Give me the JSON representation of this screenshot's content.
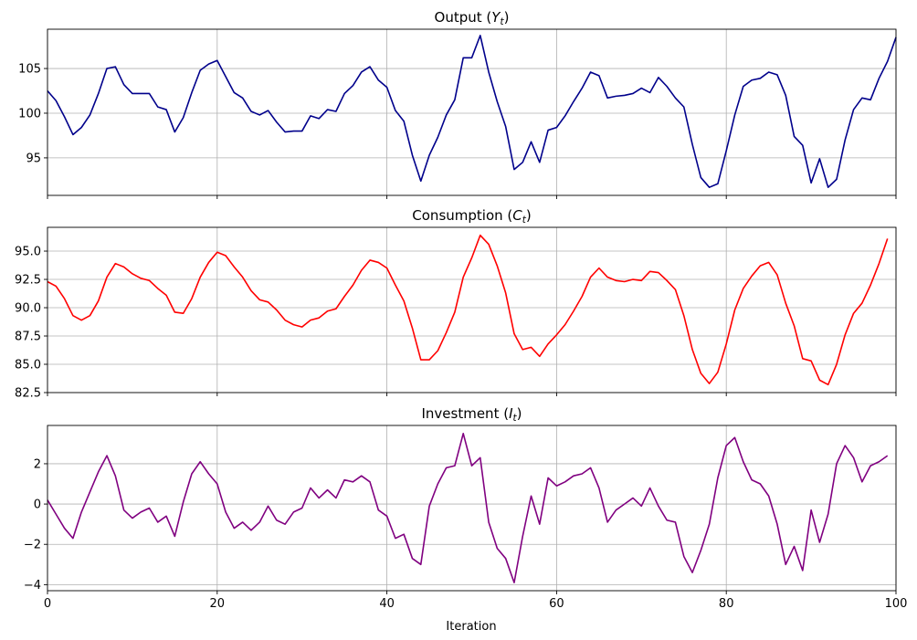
{
  "figure": {
    "xlabel": "Iteration"
  },
  "chart_data": [
    {
      "type": "line",
      "title_main": "Output (",
      "title_sym": "Y",
      "title_sub": "t",
      "title_close": ")",
      "color": "#00008b",
      "xlim": [
        0,
        100
      ],
      "ylim": [
        90.8,
        109.4
      ],
      "yticks": [
        95,
        100,
        105
      ],
      "ytick_labels": [
        "95",
        "100",
        "105"
      ],
      "xticks": [
        0,
        20,
        40,
        60,
        80,
        100
      ],
      "xtick_labels": [
        "0",
        "20",
        "40",
        "60",
        "80",
        "100"
      ],
      "show_xtick_labels": false,
      "grid": true,
      "series": [
        {
          "values": [
            102.5,
            101.4,
            99.6,
            97.6,
            98.4,
            99.8,
            102.2,
            105.0,
            105.2,
            103.2,
            102.2,
            102.2,
            102.2,
            100.7,
            100.4,
            97.9,
            99.5,
            102.3,
            104.8,
            105.5,
            105.9,
            104.1,
            102.3,
            101.7,
            100.2,
            99.8,
            100.3,
            99.0,
            97.9,
            98.0,
            98.0,
            99.7,
            99.4,
            100.4,
            100.2,
            102.2,
            103.1,
            104.6,
            105.2,
            103.7,
            102.9,
            100.3,
            99.1,
            95.3,
            92.4,
            95.3,
            97.3,
            99.8,
            101.5,
            106.2,
            106.2,
            108.7,
            104.6,
            101.3,
            98.5,
            93.7,
            94.5,
            96.8,
            94.5,
            98.1,
            98.4,
            99.7,
            101.3,
            102.8,
            104.6,
            104.2,
            101.7,
            101.9,
            102.0,
            102.2,
            102.8,
            102.3,
            104.0,
            103.0,
            101.7,
            100.7,
            96.5,
            92.8,
            91.7,
            92.1,
            95.8,
            99.8,
            103.0,
            103.7,
            103.9,
            104.6,
            104.3,
            102.0,
            97.4,
            96.4,
            92.2,
            94.9,
            91.7,
            92.6,
            97.0,
            100.4,
            101.7,
            101.5,
            103.9,
            105.8,
            108.5
          ]
        }
      ]
    },
    {
      "type": "line",
      "title_main": "Consumption (",
      "title_sym": "C",
      "title_sub": "t",
      "title_close": ")",
      "color": "#ff0000",
      "xlim": [
        0,
        100
      ],
      "ylim": [
        82.5,
        97.1
      ],
      "yticks": [
        82.5,
        85.0,
        87.5,
        90.0,
        92.5,
        95.0
      ],
      "ytick_labels": [
        "82.5",
        "85.0",
        "87.5",
        "90.0",
        "92.5",
        "95.0"
      ],
      "xticks": [
        0,
        20,
        40,
        60,
        80,
        100
      ],
      "xtick_labels": [
        "0",
        "20",
        "40",
        "60",
        "80",
        "100"
      ],
      "show_xtick_labels": false,
      "grid": true,
      "series": [
        {
          "values": [
            92.3,
            91.9,
            90.8,
            89.3,
            88.9,
            89.3,
            90.6,
            92.7,
            93.9,
            93.6,
            93.0,
            92.6,
            92.4,
            91.7,
            91.1,
            89.6,
            89.5,
            90.8,
            92.7,
            94.0,
            94.9,
            94.6,
            93.6,
            92.7,
            91.5,
            90.7,
            90.5,
            89.8,
            88.9,
            88.5,
            88.3,
            88.9,
            89.1,
            89.7,
            89.9,
            91.0,
            92.0,
            93.3,
            94.2,
            94.0,
            93.5,
            92.0,
            90.6,
            88.2,
            85.4,
            85.4,
            86.2,
            87.8,
            89.6,
            92.7,
            94.4,
            96.4,
            95.6,
            93.7,
            91.3,
            87.7,
            86.3,
            86.5,
            85.7,
            86.8,
            87.6,
            88.5,
            89.7,
            91.0,
            92.7,
            93.5,
            92.7,
            92.4,
            92.3,
            92.5,
            92.4,
            93.2,
            93.1,
            92.4,
            91.6,
            89.3,
            86.3,
            84.2,
            83.3,
            84.3,
            86.8,
            89.8,
            91.7,
            92.8,
            93.7,
            94.0,
            92.9,
            90.4,
            88.4,
            85.5,
            85.3,
            83.6,
            83.2,
            85.0,
            87.6,
            89.5,
            90.4,
            92.0,
            93.9,
            96.1
          ]
        }
      ]
    },
    {
      "type": "line",
      "title_main": "Investment (",
      "title_sym": "I",
      "title_sub": "t",
      "title_close": ")",
      "color": "#800080",
      "xlim": [
        0,
        100
      ],
      "ylim": [
        -4.3,
        3.9
      ],
      "yticks": [
        -4,
        -2,
        0,
        2
      ],
      "ytick_labels": [
        "−4",
        "−2",
        "0",
        "2"
      ],
      "xticks": [
        0,
        20,
        40,
        60,
        80,
        100
      ],
      "xtick_labels": [
        "0",
        "20",
        "40",
        "60",
        "80",
        "100"
      ],
      "show_xtick_labels": true,
      "grid": true,
      "series": [
        {
          "values": [
            0.2,
            -0.5,
            -1.2,
            -1.7,
            -0.4,
            0.6,
            1.6,
            2.4,
            1.4,
            -0.3,
            -0.7,
            -0.4,
            -0.2,
            -0.9,
            -0.6,
            -1.6,
            0.1,
            1.5,
            2.1,
            1.5,
            1.0,
            -0.4,
            -1.2,
            -0.9,
            -1.3,
            -0.9,
            -0.1,
            -0.8,
            -1.0,
            -0.4,
            -0.2,
            0.8,
            0.3,
            0.7,
            0.3,
            1.2,
            1.1,
            1.4,
            1.1,
            -0.3,
            -0.6,
            -1.7,
            -1.5,
            -2.7,
            -3.0,
            -0.1,
            1.0,
            1.8,
            1.9,
            3.5,
            1.9,
            2.3,
            -0.9,
            -2.2,
            -2.7,
            -3.9,
            -1.6,
            0.4,
            -1.0,
            1.3,
            0.9,
            1.1,
            1.4,
            1.5,
            1.8,
            0.8,
            -0.9,
            -0.3,
            0.0,
            0.3,
            -0.1,
            0.8,
            -0.1,
            -0.8,
            -0.9,
            -2.6,
            -3.4,
            -2.3,
            -1.0,
            1.3,
            2.9,
            3.3,
            2.1,
            1.2,
            1.0,
            0.4,
            -1.0,
            -3.0,
            -2.1,
            -3.3,
            -0.3,
            -1.9,
            -0.5,
            2.0,
            2.9,
            2.3,
            1.1,
            1.9,
            2.1,
            2.4
          ]
        }
      ]
    }
  ]
}
